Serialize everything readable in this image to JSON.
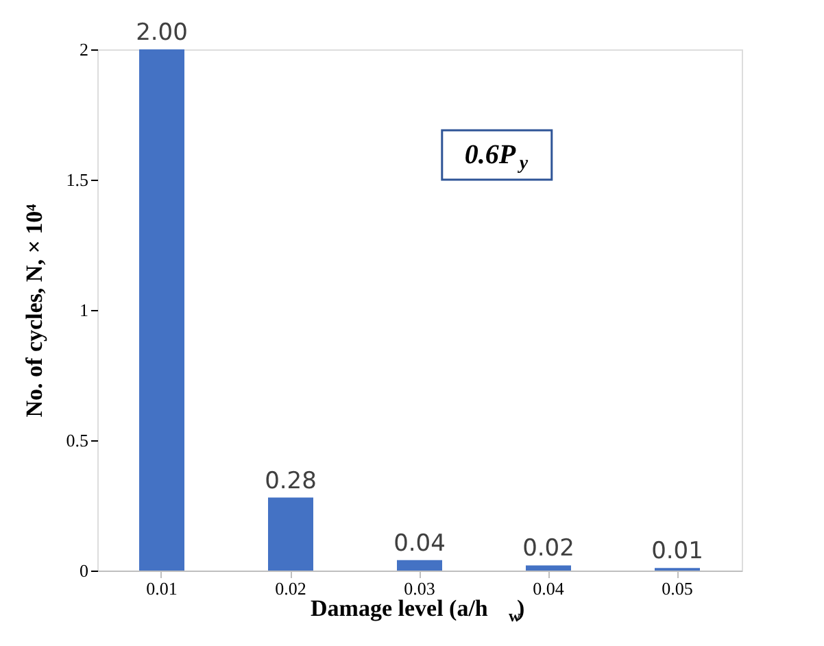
{
  "chart_data": {
    "type": "bar",
    "xlabel": "Damage level (a/h$_{w}$)",
    "ylabel": "No. of cycles, N, × 10⁴",
    "categories": [
      "0.01",
      "0.02",
      "0.03",
      "0.04",
      "0.05"
    ],
    "values": [
      2,
      0.28,
      0.04,
      0.02,
      0.01
    ],
    "value_labels": [
      "2.00",
      "0.28",
      "0.04",
      "0.02",
      "0.01"
    ],
    "color": "#4472c4",
    "ylim": [
      0,
      2
    ],
    "yticks": [
      0,
      0.5,
      1,
      1.5,
      2
    ],
    "grid": false,
    "annotations": [
      "0.6P$_{y}$"
    ]
  }
}
